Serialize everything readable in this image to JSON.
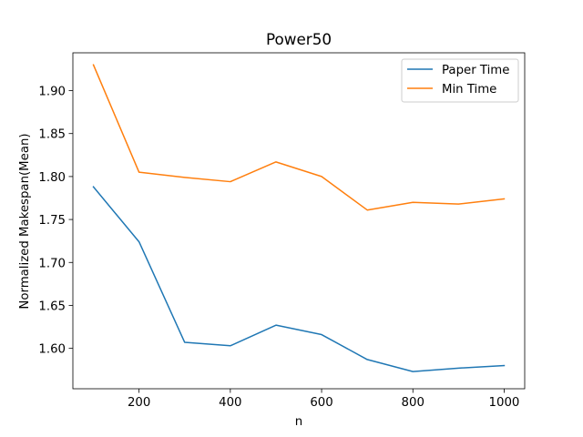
{
  "chart_data": {
    "type": "line",
    "title": "Power50",
    "xlabel": "n",
    "ylabel": "Normalized Makespan(Mean)",
    "x": [
      100,
      200,
      300,
      400,
      500,
      600,
      700,
      800,
      900,
      1000
    ],
    "series": [
      {
        "name": "Paper Time",
        "color": "#1f77b4",
        "values": [
          1.788,
          1.724,
          1.607,
          1.603,
          1.627,
          1.616,
          1.587,
          1.573,
          1.577,
          1.58
        ]
      },
      {
        "name": "Min Time",
        "color": "#ff7f0e",
        "values": [
          1.93,
          1.805,
          1.799,
          1.794,
          1.817,
          1.8,
          1.761,
          1.77,
          1.768,
          1.774
        ]
      }
    ],
    "xlim": [
      55,
      1045
    ],
    "ylim": [
      1.553,
      1.944
    ],
    "xticks": [
      200,
      400,
      600,
      800,
      1000
    ],
    "xtick_labels": [
      "200",
      "400",
      "600",
      "800",
      "1000"
    ],
    "yticks": [
      1.6,
      1.65,
      1.7,
      1.75,
      1.8,
      1.85,
      1.9
    ],
    "ytick_labels": [
      "1.60",
      "1.65",
      "1.70",
      "1.75",
      "1.80",
      "1.85",
      "1.90"
    ],
    "grid": false,
    "legend_position": "top-right"
  }
}
